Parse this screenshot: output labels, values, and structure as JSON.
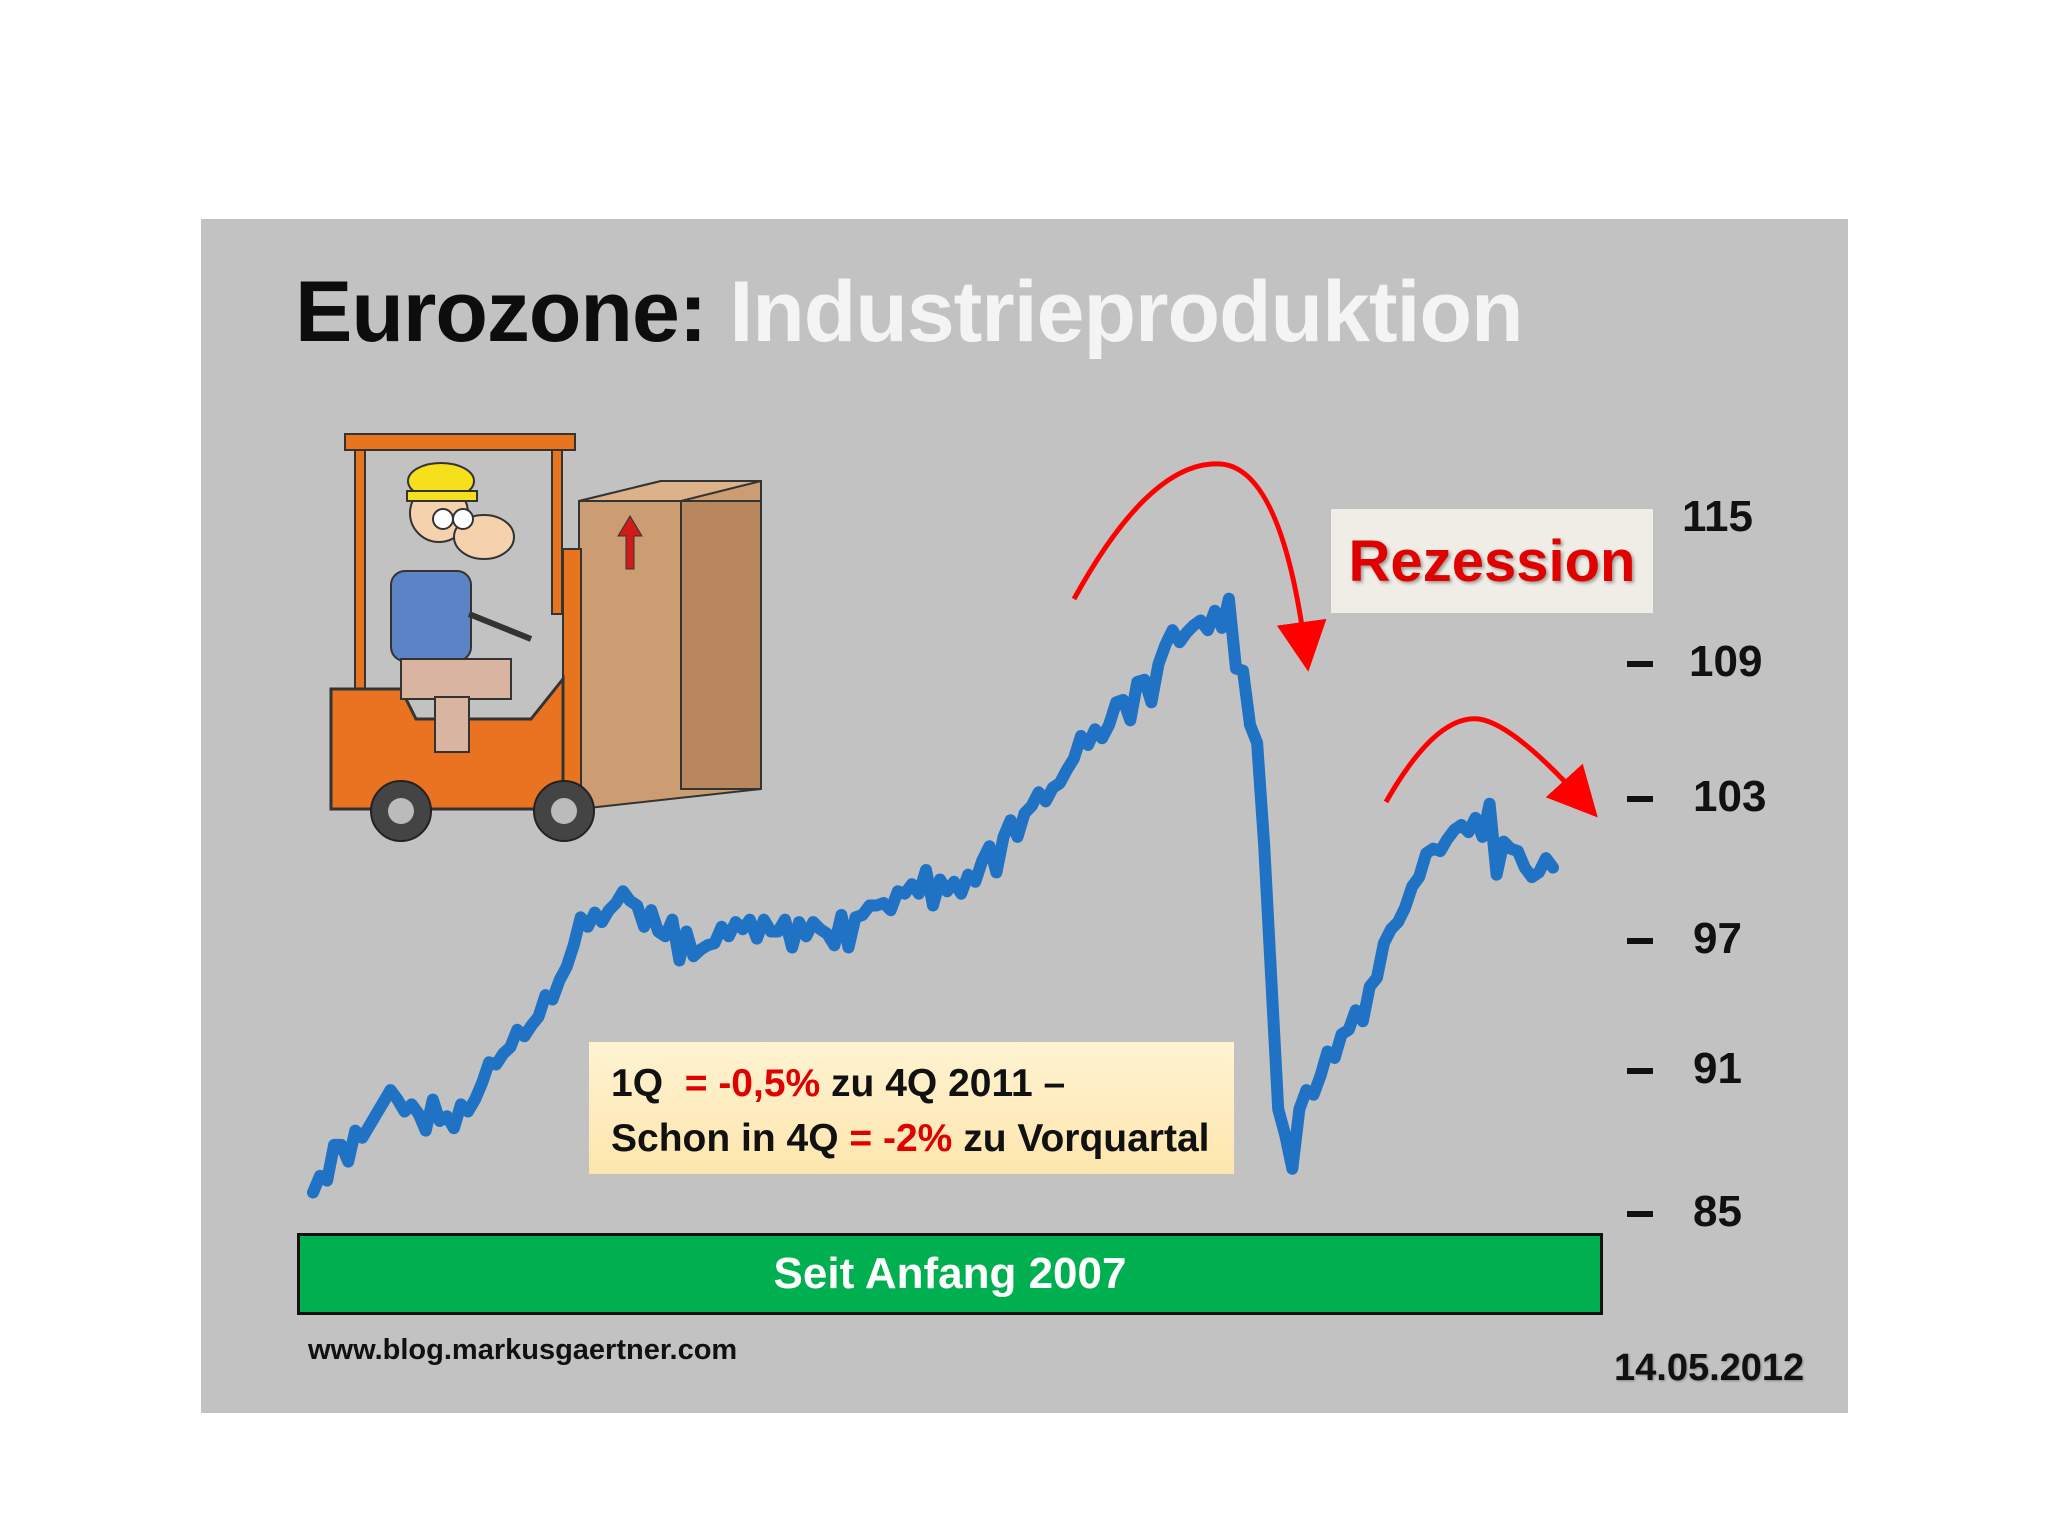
{
  "title": {
    "part1": "Eurozone:",
    "part2": "Industrieproduktion"
  },
  "annotations": {
    "recession": "Rezession",
    "note_line1": {
      "a": "1Q",
      "b": "= -0,5%",
      "c": "zu 4Q 2011 –"
    },
    "note_line2": {
      "a": "Schon in 4Q",
      "b": "= -2%",
      "c": "zu Vorquartal"
    },
    "period": "Seit Anfang 2007",
    "source": "www.blog.markusgaertner.com",
    "date": "14.05.2012"
  },
  "colors": {
    "line": "#1f72c4",
    "arrow": "#ff0000",
    "period_bar": "#00b050",
    "background": "#c2c2c2"
  },
  "illustration": {
    "icon": "forklift-worker-icon"
  },
  "chart_data": {
    "type": "line",
    "title": "Eurozone: Industrieproduktion",
    "xlabel": "",
    "ylabel": "",
    "y_ticks": [
      85,
      91,
      97,
      103,
      109,
      115
    ],
    "ylim": [
      85,
      115
    ],
    "grid": false,
    "legend": "none",
    "x_range": [
      "1990",
      "2012-03"
    ],
    "series": [
      {
        "values": [
          85.9,
          86.6,
          86.4,
          87.9,
          87.9,
          87.2,
          88.5,
          88.2,
          88.7,
          89.2,
          89.7,
          90.2,
          89.8,
          89.3,
          89.6,
          89.2,
          88.5,
          89.8,
          88.9,
          89.1,
          88.6,
          89.6,
          89.3,
          89.8,
          90.5,
          91.4,
          91.3,
          91.8,
          92.1,
          92.9,
          92.6,
          93.1,
          93.5,
          94.5,
          94.3,
          95.2,
          95.8,
          96.8,
          98.0,
          97.6,
          98.2,
          97.8,
          98.3,
          98.6,
          99.1,
          98.7,
          98.5,
          97.6,
          98.3,
          97.4,
          97.2,
          97.9,
          96.1,
          97.4,
          96.3,
          96.6,
          96.8,
          96.9,
          97.6,
          97.2,
          97.8,
          97.5,
          97.9,
          97.1,
          97.9,
          97.4,
          97.4,
          97.9,
          96.7,
          97.8,
          97.2,
          97.8,
          97.5,
          97.3,
          96.8,
          98.1,
          96.7,
          98.0,
          98.1,
          98.5,
          98.5,
          98.6,
          98.3,
          99.1,
          99.0,
          99.4,
          99.0,
          100.0,
          98.5,
          99.6,
          99.1,
          99.5,
          99.0,
          99.8,
          99.5,
          100.4,
          101.0,
          99.9,
          101.4,
          102.1,
          101.4,
          102.4,
          102.7,
          103.3,
          102.9,
          103.5,
          103.7,
          104.3,
          104.8,
          105.8,
          105.4,
          106.1,
          105.7,
          106.3,
          107.3,
          107.4,
          106.5,
          108.2,
          108.3,
          107.3,
          109.0,
          109.8,
          110.4,
          109.9,
          110.3,
          110.6,
          110.8,
          110.4,
          111.2,
          110.5,
          111.7,
          108.8,
          108.7,
          106.3,
          105.5,
          101.1,
          95.3,
          89.4,
          88.3,
          86.9,
          89.4,
          90.2,
          90.0,
          90.8,
          91.9,
          91.6,
          92.7,
          92.9,
          93.8,
          93.3,
          94.9,
          95.3,
          96.9,
          97.5,
          97.8,
          98.4,
          99.3,
          99.7,
          100.7,
          100.9,
          100.8,
          101.3,
          101.7,
          101.9,
          101.6,
          102.2,
          101.4,
          102.8,
          99.8,
          101.2,
          100.9,
          100.8,
          100.1,
          99.7,
          99.9,
          100.5,
          100.1
        ]
      }
    ]
  }
}
